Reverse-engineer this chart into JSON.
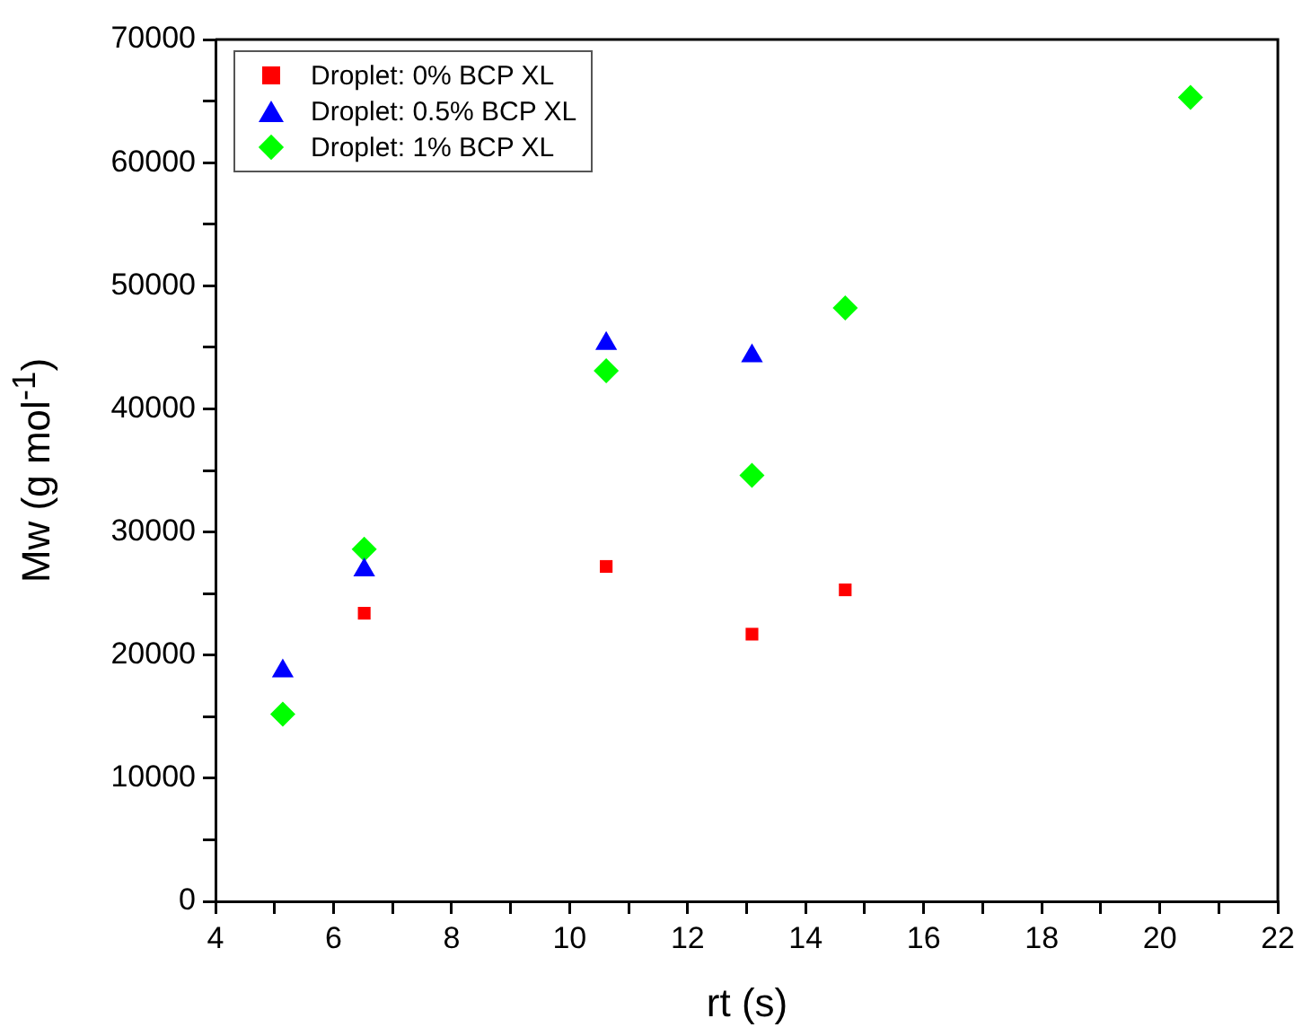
{
  "chart_data": {
    "type": "scatter",
    "xlabel": "rt (s)",
    "ylabel": "Mw (g mol$^{-1}$)",
    "xlim": [
      4,
      22
    ],
    "xticks": [
      4,
      {
        "value": 5,
        "label": null
      },
      6,
      {
        "value": 7,
        "label": null
      },
      8,
      {
        "value": 9,
        "label": null
      },
      10,
      {
        "value": 11,
        "label": null
      },
      12,
      {
        "value": 13,
        "label": null
      },
      14,
      {
        "value": 15,
        "label": null
      },
      16,
      {
        "value": 17,
        "label": null
      },
      18,
      {
        "value": 19,
        "label": null
      },
      20,
      {
        "value": 21,
        "label": null
      },
      22
    ],
    "ylim": [
      0,
      70000
    ],
    "yticks": [
      0,
      {
        "value": 5000,
        "label": null
      },
      10000,
      {
        "value": 15000,
        "label": null
      },
      20000,
      {
        "value": 25000,
        "label": null
      },
      30000,
      {
        "value": 35000,
        "label": null
      },
      40000,
      {
        "value": 45000,
        "label": null
      },
      50000,
      {
        "value": 55000,
        "label": null
      },
      60000,
      {
        "value": 65000,
        "label": null
      },
      70000
    ],
    "grid": false,
    "legend": "top left",
    "series": [
      {
        "name": "Droplet: 0% BCP XL",
        "color": "#ff0000",
        "marker": "square",
        "x": [
          6.52,
          10.62,
          13.09,
          14.67
        ],
        "values": [
          23400,
          27200,
          21700,
          25300
        ]
      },
      {
        "name": "Droplet: 0.5% BCP XL",
        "color": "#0000ff",
        "marker": "triangle",
        "x": [
          5.14,
          6.52,
          10.62,
          13.09
        ],
        "values": [
          18700,
          26900,
          45300,
          44300
        ]
      },
      {
        "name": "Droplet: 1% BCP XL",
        "color": "#00ff00",
        "marker": "diamond",
        "x": [
          5.14,
          6.52,
          10.62,
          13.09,
          14.67,
          20.52
        ],
        "values": [
          15200,
          28600,
          43100,
          34600,
          48200,
          65300
        ]
      }
    ]
  }
}
